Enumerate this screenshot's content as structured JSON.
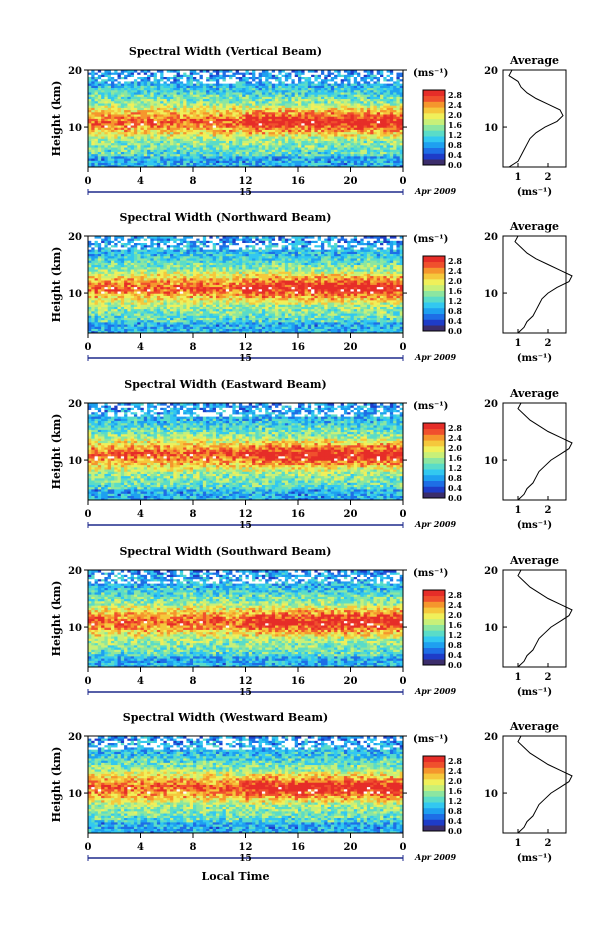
{
  "figure": {
    "xlabel": "Local Time",
    "date_label": "Apr 2009",
    "day_label": "15"
  },
  "chart_data": [
    {
      "type": "heatmap",
      "title": "Spectral Width (Vertical Beam)",
      "xlabel": "Local Time",
      "ylabel": "Height (km)",
      "xlim": [
        0,
        24
      ],
      "ylim": [
        3,
        20
      ],
      "x_ticks": [
        "0",
        "4",
        "8",
        "12",
        "16",
        "20",
        "0"
      ],
      "y_ticks": [
        "10",
        "20"
      ],
      "colorbar": {
        "unit": "(ms⁻¹)",
        "ticks": [
          "0.0",
          "0.4",
          "0.8",
          "1.2",
          "1.6",
          "2.0",
          "2.4",
          "2.8"
        ],
        "range": [
          0,
          3.0
        ]
      },
      "description_pattern": "high width (~2.8 ms-1) layer near 9-13 km, strongest after 14 LT; lower widths below 8 km",
      "profile": {
        "title": "Average",
        "xlabel": "(ms⁻¹)",
        "x_ticks": [
          "1",
          "2"
        ],
        "y_ticks": [
          "10",
          "20"
        ],
        "heights": [
          3,
          4,
          5,
          6,
          7,
          8,
          9,
          10,
          11,
          12,
          13,
          14,
          15,
          16,
          17,
          18,
          19,
          20
        ],
        "values": [
          0.7,
          1.0,
          1.1,
          1.2,
          1.3,
          1.4,
          1.6,
          1.9,
          2.3,
          2.5,
          2.4,
          2.0,
          1.6,
          1.3,
          1.1,
          1.0,
          0.7,
          0.8
        ]
      }
    },
    {
      "type": "heatmap",
      "title": "Spectral Width (Northward Beam)",
      "xlabel": "Local Time",
      "ylabel": "Height (km)",
      "xlim": [
        0,
        24
      ],
      "ylim": [
        3,
        20
      ],
      "x_ticks": [
        "0",
        "4",
        "8",
        "12",
        "16",
        "20",
        "0"
      ],
      "y_ticks": [
        "10",
        "20"
      ],
      "colorbar": {
        "unit": "(ms⁻¹)",
        "ticks": [
          "0.0",
          "0.4",
          "0.8",
          "1.2",
          "1.6",
          "2.0",
          "2.4",
          "2.8"
        ],
        "range": [
          0,
          3.0
        ]
      },
      "profile": {
        "title": "Average",
        "xlabel": "(ms⁻¹)",
        "x_ticks": [
          "1",
          "2"
        ],
        "y_ticks": [
          "10",
          "20"
        ],
        "heights": [
          3,
          4,
          5,
          6,
          7,
          8,
          9,
          10,
          11,
          12,
          13,
          14,
          15,
          16,
          17,
          18,
          19,
          20
        ],
        "values": [
          1.0,
          1.2,
          1.3,
          1.5,
          1.6,
          1.7,
          1.8,
          2.0,
          2.3,
          2.7,
          2.8,
          2.4,
          2.0,
          1.6,
          1.3,
          1.1,
          0.9,
          1.0
        ]
      }
    },
    {
      "type": "heatmap",
      "title": "Spectral Width (Eastward Beam)",
      "xlabel": "Local Time",
      "ylabel": "Height (km)",
      "xlim": [
        0,
        24
      ],
      "ylim": [
        3,
        20
      ],
      "x_ticks": [
        "0",
        "4",
        "8",
        "12",
        "16",
        "20",
        "0"
      ],
      "y_ticks": [
        "10",
        "20"
      ],
      "colorbar": {
        "unit": "(ms⁻¹)",
        "ticks": [
          "0.0",
          "0.4",
          "0.8",
          "1.2",
          "1.6",
          "2.0",
          "2.4",
          "2.8"
        ],
        "range": [
          0,
          3.0
        ]
      },
      "profile": {
        "title": "Average",
        "xlabel": "(ms⁻¹)",
        "x_ticks": [
          "1",
          "2"
        ],
        "y_ticks": [
          "10",
          "20"
        ],
        "heights": [
          3,
          4,
          5,
          6,
          7,
          8,
          9,
          10,
          11,
          12,
          13,
          14,
          15,
          16,
          17,
          18,
          19,
          20
        ],
        "values": [
          1.0,
          1.2,
          1.3,
          1.5,
          1.6,
          1.7,
          1.9,
          2.1,
          2.4,
          2.7,
          2.8,
          2.4,
          2.0,
          1.7,
          1.4,
          1.2,
          1.0,
          1.1
        ]
      }
    },
    {
      "type": "heatmap",
      "title": "Spectral Width (Southward Beam)",
      "xlabel": "Local Time",
      "ylabel": "Height (km)",
      "xlim": [
        0,
        24
      ],
      "ylim": [
        3,
        20
      ],
      "x_ticks": [
        "0",
        "4",
        "8",
        "12",
        "16",
        "20",
        "0"
      ],
      "y_ticks": [
        "10",
        "20"
      ],
      "colorbar": {
        "unit": "(ms⁻¹)",
        "ticks": [
          "0.0",
          "0.4",
          "0.8",
          "1.2",
          "1.6",
          "2.0",
          "2.4",
          "2.8"
        ],
        "range": [
          0,
          3.0
        ]
      },
      "profile": {
        "title": "Average",
        "xlabel": "(ms⁻¹)",
        "x_ticks": [
          "1",
          "2"
        ],
        "y_ticks": [
          "10",
          "20"
        ],
        "heights": [
          3,
          4,
          5,
          6,
          7,
          8,
          9,
          10,
          11,
          12,
          13,
          14,
          15,
          16,
          17,
          18,
          19,
          20
        ],
        "values": [
          1.0,
          1.2,
          1.3,
          1.5,
          1.6,
          1.7,
          1.9,
          2.1,
          2.4,
          2.7,
          2.8,
          2.4,
          2.0,
          1.7,
          1.4,
          1.2,
          1.0,
          1.1
        ]
      }
    },
    {
      "type": "heatmap",
      "title": "Spectral Width (Westward Beam)",
      "xlabel": "Local Time",
      "ylabel": "Height (km)",
      "xlim": [
        0,
        24
      ],
      "ylim": [
        3,
        20
      ],
      "x_ticks": [
        "0",
        "4",
        "8",
        "12",
        "16",
        "20",
        "0"
      ],
      "y_ticks": [
        "10",
        "20"
      ],
      "colorbar": {
        "unit": "(ms⁻¹)",
        "ticks": [
          "0.0",
          "0.4",
          "0.8",
          "1.2",
          "1.6",
          "2.0",
          "2.4",
          "2.8"
        ],
        "range": [
          0,
          3.0
        ]
      },
      "profile": {
        "title": "Average",
        "xlabel": "(ms⁻¹)",
        "x_ticks": [
          "1",
          "2"
        ],
        "y_ticks": [
          "10",
          "20"
        ],
        "heights": [
          3,
          4,
          5,
          6,
          7,
          8,
          9,
          10,
          11,
          12,
          13,
          14,
          15,
          16,
          17,
          18,
          19,
          20
        ],
        "values": [
          1.0,
          1.2,
          1.3,
          1.5,
          1.6,
          1.7,
          1.9,
          2.1,
          2.4,
          2.7,
          2.8,
          2.4,
          2.0,
          1.7,
          1.4,
          1.2,
          1.0,
          1.1
        ]
      }
    }
  ],
  "colors": {
    "scale": [
      "#3b2d6b",
      "#1e3cc8",
      "#1e6ee6",
      "#1ea0f0",
      "#32c8f0",
      "#5adcc8",
      "#8ce6a0",
      "#c8f078",
      "#f0f05a",
      "#f5c83c",
      "#f5962d",
      "#f0502d",
      "#e62d28"
    ]
  }
}
